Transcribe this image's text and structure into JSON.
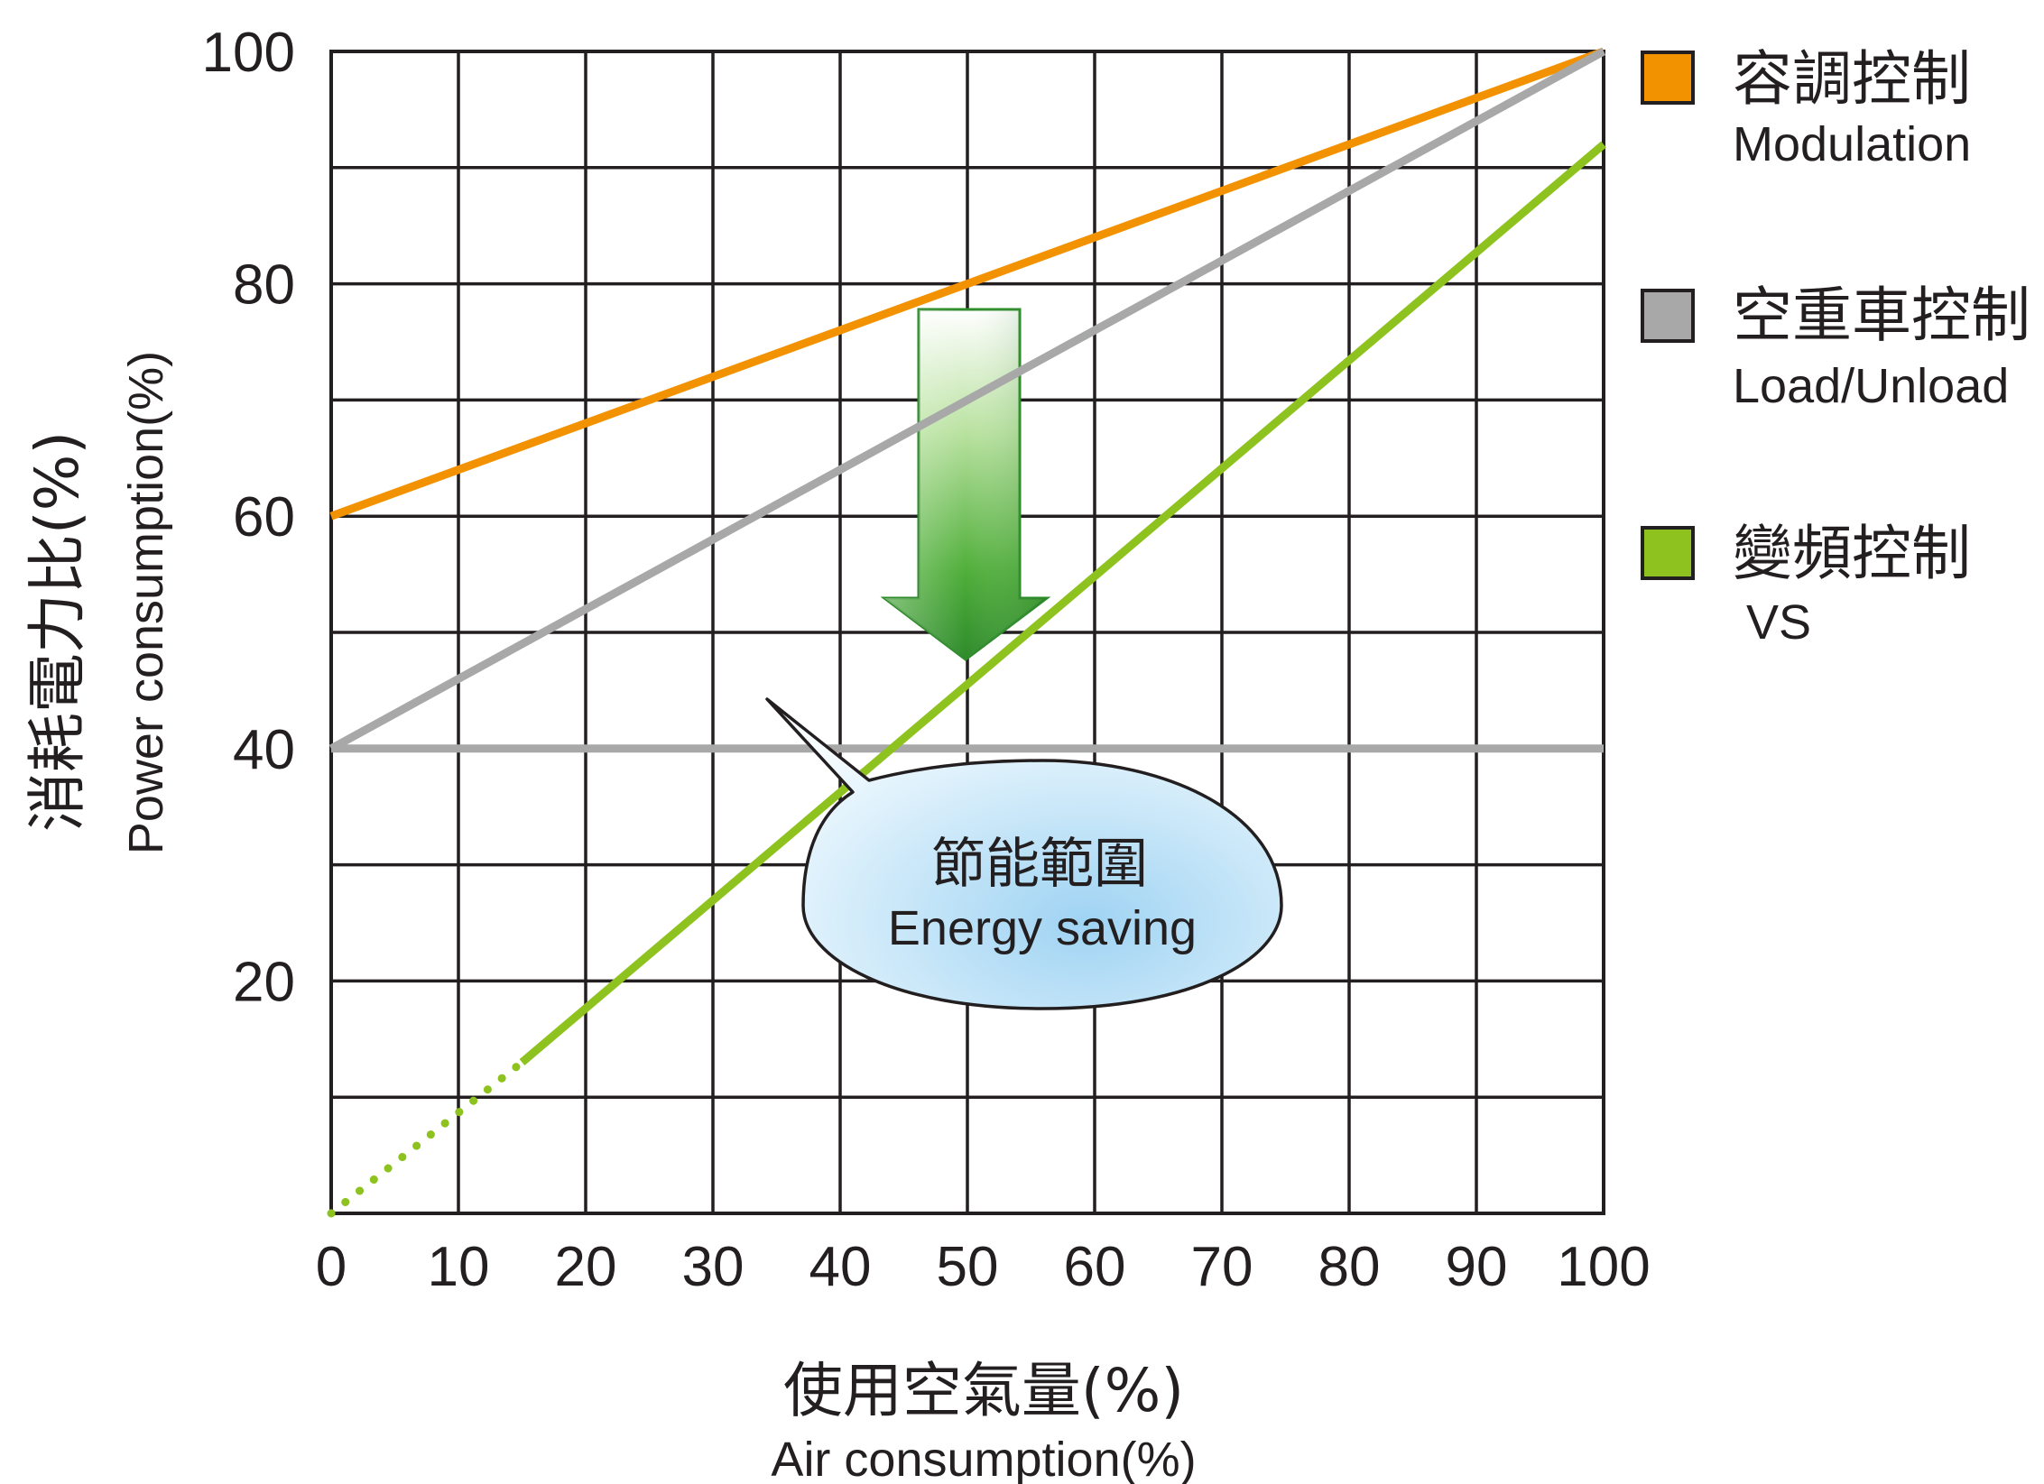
{
  "chart_data": {
    "type": "line",
    "x_ticks": [
      "0",
      "10",
      "20",
      "30",
      "40",
      "50",
      "60",
      "70",
      "80",
      "90",
      "100"
    ],
    "y_ticks": [
      "20",
      "40",
      "60",
      "80",
      "100"
    ],
    "xlim": [
      0,
      100
    ],
    "ylim": [
      0,
      100
    ],
    "grid": true,
    "xlabel": {
      "cn": "使用空氣量(%)",
      "en": "Air consumption(%)"
    },
    "ylabel": {
      "cn": "消耗電力比(%)",
      "en": "Power consumption(%)"
    },
    "legend_position": "right",
    "series": [
      {
        "key": "modulation",
        "name_cn": "容調控制",
        "name_en": "Modulation",
        "color": "#f39200",
        "x": [
          0,
          100
        ],
        "y": [
          60,
          100
        ]
      },
      {
        "key": "load_unload",
        "name_cn": "空重車控制",
        "name_en": "Load/Unload",
        "color": "#a8a8a8",
        "x": [
          0,
          100
        ],
        "y": [
          40,
          100
        ]
      },
      {
        "key": "vs",
        "name_cn": "變頻控制",
        "name_en": "VS",
        "color": "#8dc21f",
        "x": [
          0,
          15,
          100
        ],
        "y": [
          0,
          13,
          92
        ],
        "dotted_until_x": 15
      }
    ],
    "reference_line": {
      "y": 40,
      "color": "#a8a8a8"
    },
    "annotation": {
      "cn": "節能範圍",
      "en": "Energy saving"
    }
  }
}
